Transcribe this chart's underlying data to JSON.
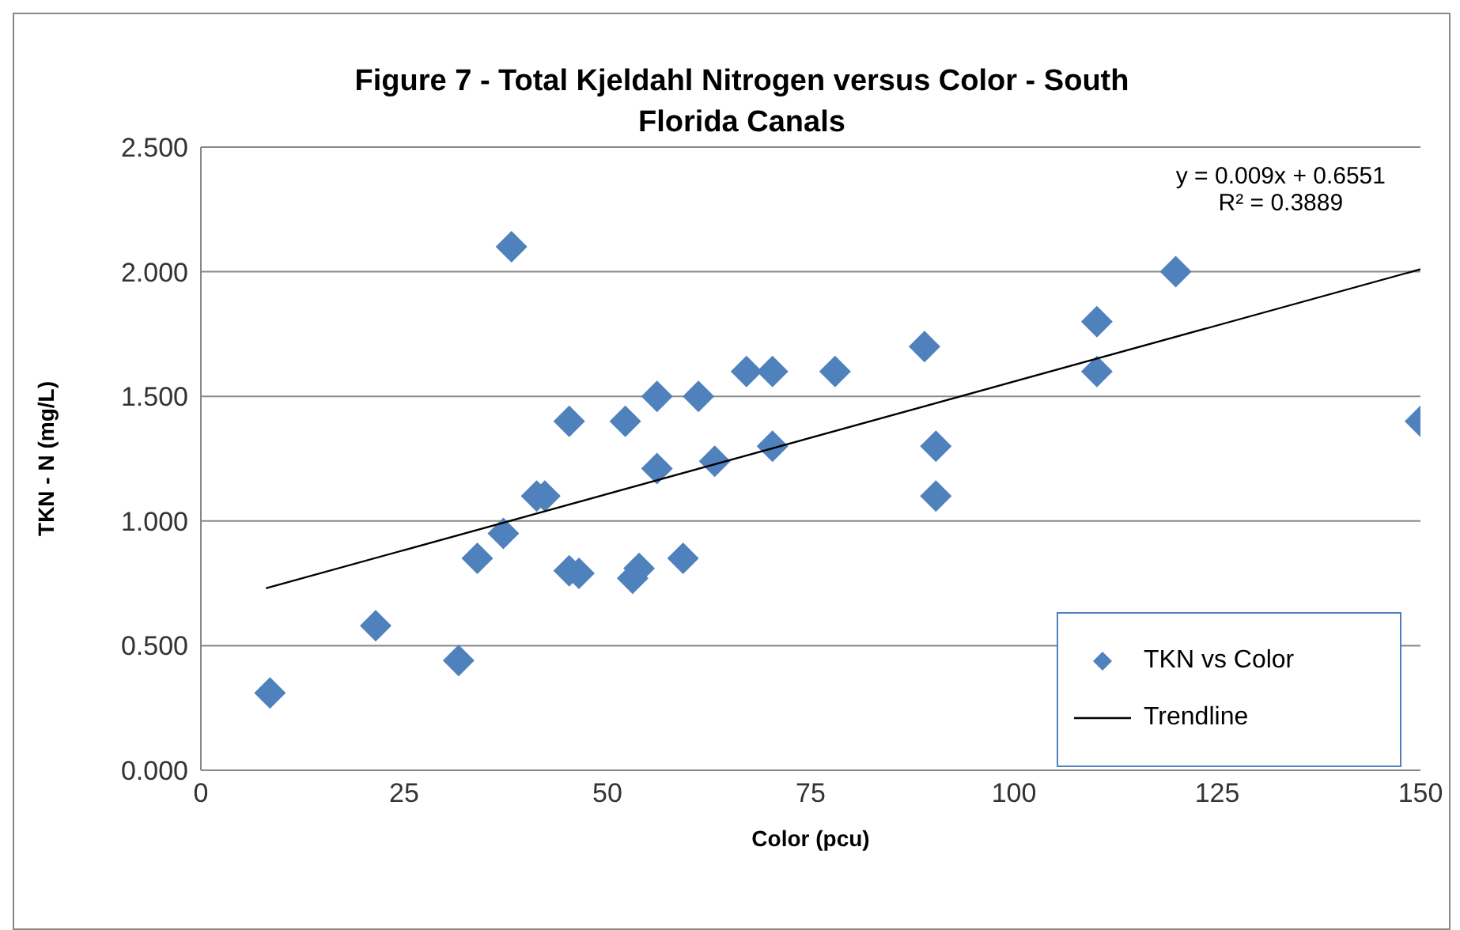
{
  "chart_data": {
    "type": "scatter",
    "title": "Figure 7 - Total Kjeldahl Nitrogen versus Color - South Florida Canals",
    "xlabel": "Color (pcu)",
    "ylabel": "TKN - N (mg/L)",
    "x": [
      8.5,
      21.5,
      31.7,
      34,
      37.2,
      38.2,
      41.3,
      42.3,
      45.3,
      45.3,
      46.5,
      52.2,
      53.1,
      53.9,
      56.1,
      56.1,
      59.3,
      61.2,
      63.2,
      67.1,
      70.3,
      70.3,
      78,
      89,
      90.4,
      90.4,
      110.2,
      110.2,
      119.9,
      150
    ],
    "series": [
      {
        "name": "TKN vs Color",
        "color": "#4f81bd",
        "marker": "diamond",
        "values": [
          0.31,
          0.58,
          0.44,
          0.85,
          0.95,
          2.1,
          1.1,
          1.1,
          1.4,
          0.8,
          0.79,
          1.4,
          0.77,
          0.81,
          1.5,
          1.21,
          0.85,
          1.5,
          1.24,
          1.6,
          1.6,
          1.3,
          1.6,
          1.7,
          1.3,
          1.1,
          1.8,
          1.6,
          2.0,
          1.4
        ]
      },
      {
        "name": "Trendline",
        "type": "line",
        "color": "#000000",
        "x": [
          8,
          150
        ],
        "values": [
          0.73,
          2.01
        ]
      }
    ],
    "xlim": [
      0,
      150
    ],
    "xticks": [
      0,
      25,
      50,
      75,
      100,
      125,
      150
    ],
    "ylim": [
      0,
      2.5
    ],
    "yticks": [
      {
        "value": 0,
        "label": "0.000"
      },
      {
        "value": 0.5,
        "label": "0.500"
      },
      {
        "value": 1,
        "label": "1.000"
      },
      {
        "value": 1.5,
        "label": "1.500"
      },
      {
        "value": 2,
        "label": "2.000"
      },
      {
        "value": 2.5,
        "label": "2.500"
      }
    ],
    "grid": "y",
    "legend": "bottom right",
    "annotations": [
      "y = 0.009x + 0.6551",
      "R² = 0.3889"
    ]
  }
}
